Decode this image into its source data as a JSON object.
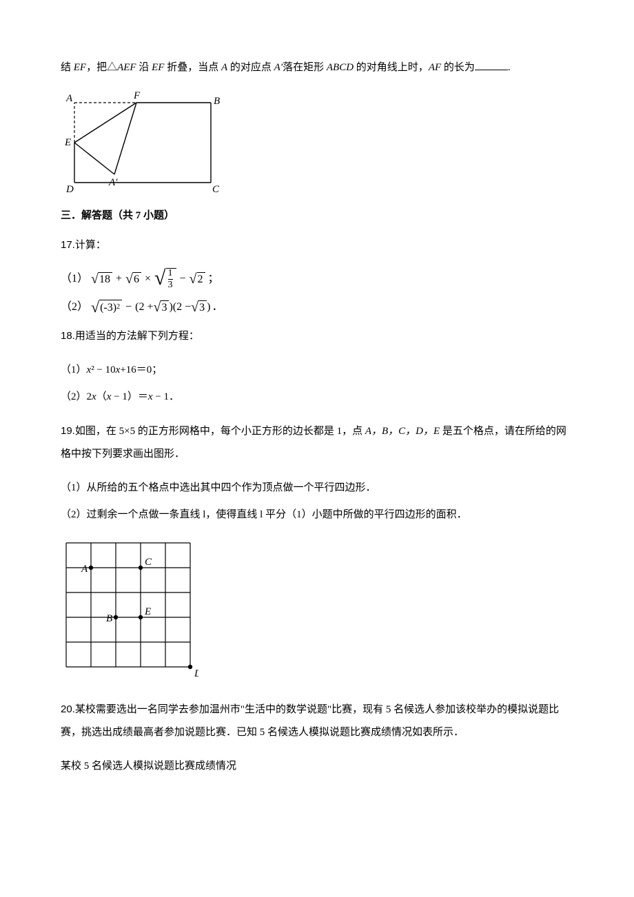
{
  "q16_tail": {
    "prefix": "结 ",
    "ef": "EF",
    "mid1": "，把△",
    "aef": "AEF",
    "mid2": " 沿 ",
    "ef2": "EF",
    "mid3": " 折叠，当点 ",
    "a": "A",
    "mid4": " 的对应点 ",
    "aprime": "A′",
    "mid5": "落在矩形 ",
    "abcd": "ABCD",
    "mid6": " 的对角线上时，",
    "af": "AF",
    "mid7": " 的长为",
    "period": "."
  },
  "fig1": {
    "labels": {
      "A": "A",
      "F": "F",
      "B": "B",
      "E": "E",
      "Aprime": "A′",
      "D": "D",
      "C": "C"
    },
    "stroke": "#000000",
    "dash": "4,3"
  },
  "section3": "三．解答题（共 7 小题）",
  "q17": {
    "num": "17.",
    "stem": "计算：",
    "part1_label": "（1）",
    "part1_tail": "；",
    "part2_label": "（2）",
    "part2_tail": "．",
    "sqrt18": "18",
    "sqrt6": "6",
    "frac_num": "1",
    "frac_den": "3",
    "sqrt2": "2",
    "neg3sq": "(-3)",
    "sq": "2",
    "two_plus": "(2 +",
    "sqrt3a": "3",
    "close_open": ")(2 −",
    "sqrt3b": "3",
    "close": ")"
  },
  "q18": {
    "num": "18.",
    "stem": "用适当的方法解下列方程：",
    "p1_label": "（1）",
    "p1_body_a": "x",
    "p1_body_b": "² − 10",
    "p1_body_c": "x",
    "p1_body_d": "+16＝0；",
    "p2_label": "（2）",
    "p2_body_a": "2",
    "p2_body_b": "x",
    "p2_body_c": "（",
    "p2_body_d": "x",
    "p2_body_e": " − 1）＝",
    "p2_body_f": "x",
    "p2_body_g": " − 1．"
  },
  "q19": {
    "num": "19.",
    "stem_a": "如图，在 5×5 的正方形网格中，每个小正方形的边长都是 1，点 ",
    "pts": "A，B，C，D，E",
    "stem_b": " 是五个格点，请在所给的网格中按下列要求画出图形．",
    "p1": "（1）从所给的五个格点中选出其中四个作为顶点做一个平行四边形．",
    "p2": "（2）过剩余一个点做一条直线 l，使得直线 l 平分（1）小题中所做的平行四边形的面积．",
    "grid": {
      "size": 5,
      "cell": 36,
      "stroke": "#000000",
      "labels": {
        "A": "A",
        "B": "B",
        "C": "C",
        "D": "D",
        "E": "E"
      },
      "points": {
        "A": [
          1,
          1
        ],
        "C": [
          3,
          1
        ],
        "B": [
          2,
          3
        ],
        "E": [
          3,
          3
        ],
        "D": [
          5,
          5
        ]
      }
    }
  },
  "q20": {
    "num": "20.",
    "line1": "某校需要选出一名同学去参加温州市\"生活中的数学说题\"比赛，现有 5 名候选人参加该校举办的模拟说题比赛，挑选出成绩最高者参加说题比赛．已知 5 名候选人模拟说题比赛成绩情况如表所示．",
    "line2": "某校 5 名候选人模拟说题比赛成绩情况"
  }
}
